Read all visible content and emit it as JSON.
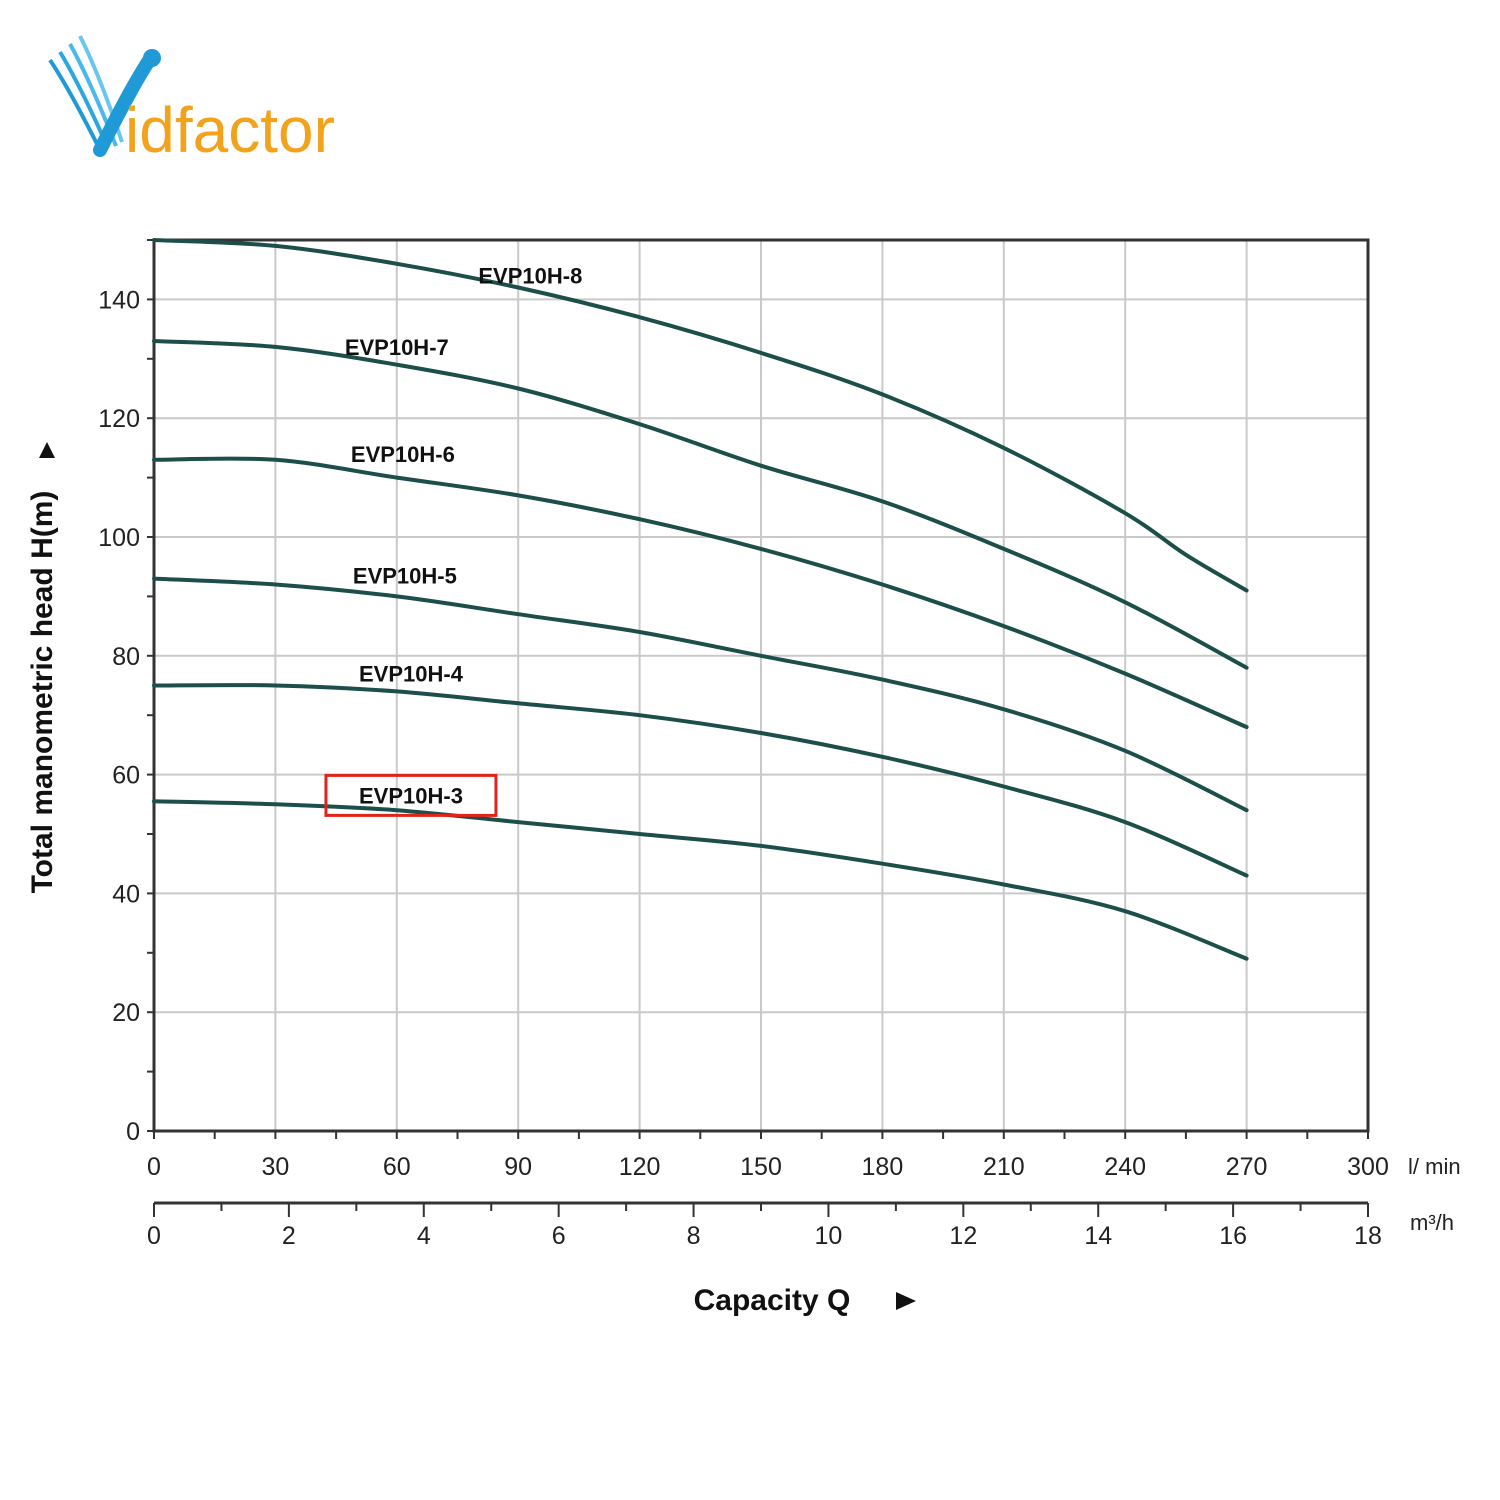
{
  "logo": {
    "text": "Vidfactor",
    "colors": {
      "v": "#1f9ad6",
      "rest": "#f2a21b"
    }
  },
  "chart_data": {
    "type": "line",
    "ylabel": "Total manometric head H(m)",
    "xlabel": "Capacity Q",
    "y_ticks": [
      "0",
      "20",
      "40",
      "60",
      "80",
      "100",
      "120",
      "140"
    ],
    "x_ticks_lmin": [
      "0",
      "30",
      "60",
      "90",
      "120",
      "150",
      "180",
      "210",
      "240",
      "270",
      "300"
    ],
    "x_unit_lmin": "l/ min",
    "x_ticks_m3h": [
      "0",
      "2",
      "4",
      "6",
      "8",
      "10",
      "12",
      "14",
      "16",
      "18"
    ],
    "x_unit_m3h": "m³/h",
    "xlim": [
      0,
      300
    ],
    "ylim": [
      0,
      150
    ],
    "grid": true,
    "line_color": "#1c4f4a",
    "highlight_color": "#e0241b",
    "highlighted_series": "EVP10H-3",
    "series": [
      {
        "name": "EVP10H-8",
        "x": [
          0,
          30,
          60,
          90,
          120,
          150,
          180,
          210,
          240,
          255,
          270
        ],
        "y": [
          150,
          149,
          146,
          142,
          137,
          131,
          124,
          115,
          104,
          97,
          91
        ]
      },
      {
        "name": "EVP10H-7",
        "x": [
          0,
          30,
          60,
          90,
          120,
          150,
          180,
          210,
          240,
          270
        ],
        "y": [
          133,
          132,
          129,
          125,
          119,
          112,
          106,
          98,
          89,
          78
        ]
      },
      {
        "name": "EVP10H-6",
        "x": [
          0,
          30,
          60,
          90,
          120,
          150,
          180,
          210,
          240,
          270
        ],
        "y": [
          113,
          113,
          110,
          107,
          103,
          98,
          92,
          85,
          77,
          68
        ]
      },
      {
        "name": "EVP10H-5",
        "x": [
          0,
          30,
          60,
          90,
          120,
          150,
          180,
          210,
          240,
          270
        ],
        "y": [
          93,
          92,
          90,
          87,
          84,
          80,
          76,
          71,
          64,
          54
        ]
      },
      {
        "name": "EVP10H-4",
        "x": [
          0,
          30,
          60,
          90,
          120,
          150,
          180,
          210,
          240,
          270
        ],
        "y": [
          75,
          75,
          74,
          72,
          70,
          67,
          63,
          58,
          52,
          43
        ]
      },
      {
        "name": "EVP10H-3",
        "x": [
          0,
          30,
          60,
          90,
          120,
          150,
          180,
          210,
          240,
          270
        ],
        "y": [
          55.5,
          55,
          54,
          52,
          50,
          48,
          45,
          41.5,
          37,
          29
        ]
      }
    ],
    "labels": [
      {
        "series": "EVP10H-8",
        "x": 93,
        "y": 144
      },
      {
        "series": "EVP10H-7",
        "x": 60,
        "y": 132
      },
      {
        "series": "EVP10H-6",
        "x": 61.5,
        "y": 114
      },
      {
        "series": "EVP10H-5",
        "x": 62,
        "y": 93.5
      },
      {
        "series": "EVP10H-4",
        "x": 63.5,
        "y": 77
      },
      {
        "series": "EVP10H-3",
        "x": 63.5,
        "y": 56.5
      }
    ]
  }
}
